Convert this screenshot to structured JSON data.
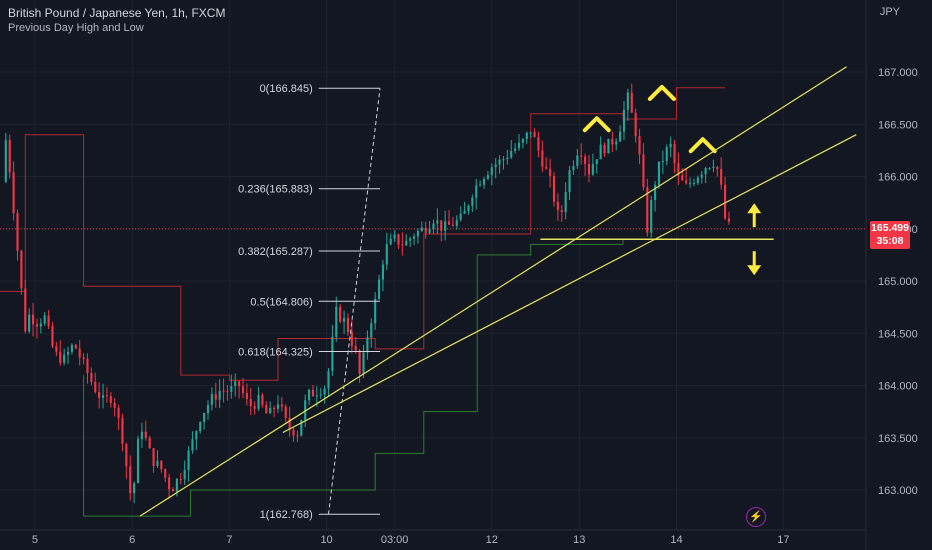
{
  "header": {
    "title": "British Pound / Japanese Yen, 1h, FXCM",
    "subtitle": "Previous Day High and Low",
    "currency": "JPY"
  },
  "price_badge": {
    "price": "165.499",
    "countdown": "35:08"
  },
  "lightning_icon": "lightning-icon",
  "colors": {
    "background": "#131722",
    "up": "#26a69a",
    "down": "#f23645",
    "pdh_line": "#b22833",
    "pdl_line": "#2e7d32",
    "trendline": "#e6e65a",
    "arrow": "#ffeb3b",
    "current_price": "#f23645"
  },
  "chart_data": {
    "type": "candlestick",
    "title": "British Pound / Japanese Yen, 1h, FXCM",
    "indicator": "Previous Day High and Low",
    "ylim": [
      162.6,
      167.4
    ],
    "y_ticks": [
      "167.000",
      "166.500",
      "166.000",
      "165.500",
      "165.000",
      "164.500",
      "164.000",
      "163.500",
      "163.000"
    ],
    "x_labels": [
      {
        "label": "5",
        "pos": 5.0
      },
      {
        "label": "6",
        "pos": 6.0
      },
      {
        "label": "7",
        "pos": 7.0
      },
      {
        "label": "10",
        "pos": 8.0
      },
      {
        "label": "03:00",
        "pos": 8.7
      },
      {
        "label": "12",
        "pos": 9.7
      },
      {
        "label": "13",
        "pos": 10.6
      },
      {
        "label": "14",
        "pos": 11.6
      },
      {
        "label": "17",
        "pos": 12.7
      }
    ],
    "xlim": [
      4.64,
      13.55
    ],
    "price_path": [
      [
        4.66,
        165.95
      ],
      [
        4.7,
        166.35
      ],
      [
        4.75,
        166.0
      ],
      [
        4.8,
        165.5
      ],
      [
        4.85,
        165.0
      ],
      [
        4.9,
        164.55
      ],
      [
        4.95,
        164.7
      ],
      [
        5.0,
        164.6
      ],
      [
        5.1,
        164.65
      ],
      [
        5.2,
        164.3
      ],
      [
        5.3,
        164.25
      ],
      [
        5.4,
        164.4
      ],
      [
        5.5,
        164.2
      ],
      [
        5.6,
        164.0
      ],
      [
        5.7,
        163.85
      ],
      [
        5.8,
        163.9
      ],
      [
        5.9,
        163.5
      ],
      [
        5.96,
        163.1
      ],
      [
        6.0,
        162.85
      ],
      [
        6.05,
        163.4
      ],
      [
        6.1,
        163.6
      ],
      [
        6.2,
        163.3
      ],
      [
        6.3,
        163.2
      ],
      [
        6.4,
        163.0
      ],
      [
        6.5,
        163.15
      ],
      [
        6.6,
        163.4
      ],
      [
        6.7,
        163.7
      ],
      [
        6.8,
        163.85
      ],
      [
        6.9,
        163.95
      ],
      [
        7.0,
        163.95
      ],
      [
        7.1,
        164.0
      ],
      [
        7.2,
        163.8
      ],
      [
        7.3,
        163.85
      ],
      [
        7.4,
        163.7
      ],
      [
        7.5,
        163.85
      ],
      [
        7.6,
        163.6
      ],
      [
        7.7,
        163.55
      ],
      [
        7.8,
        163.9
      ],
      [
        7.9,
        163.95
      ],
      [
        8.0,
        164.0
      ],
      [
        8.05,
        164.35
      ],
      [
        8.1,
        164.7
      ],
      [
        8.2,
        164.6
      ],
      [
        8.3,
        164.3
      ],
      [
        8.35,
        164.05
      ],
      [
        8.4,
        164.4
      ],
      [
        8.5,
        164.8
      ],
      [
        8.6,
        165.3
      ],
      [
        8.7,
        165.4
      ],
      [
        8.8,
        165.35
      ],
      [
        8.9,
        165.45
      ],
      [
        9.0,
        165.5
      ],
      [
        9.1,
        165.6
      ],
      [
        9.2,
        165.5
      ],
      [
        9.3,
        165.55
      ],
      [
        9.4,
        165.6
      ],
      [
        9.5,
        165.85
      ],
      [
        9.6,
        166.0
      ],
      [
        9.7,
        166.1
      ],
      [
        9.8,
        166.15
      ],
      [
        9.9,
        166.25
      ],
      [
        10.0,
        166.3
      ],
      [
        10.1,
        166.45
      ],
      [
        10.2,
        166.2
      ],
      [
        10.3,
        165.95
      ],
      [
        10.4,
        165.55
      ],
      [
        10.45,
        165.85
      ],
      [
        10.5,
        166.05
      ],
      [
        10.6,
        166.3
      ],
      [
        10.7,
        166.05
      ],
      [
        10.8,
        166.25
      ],
      [
        10.9,
        166.3
      ],
      [
        11.0,
        166.4
      ],
      [
        11.05,
        166.6
      ],
      [
        11.1,
        166.75
      ],
      [
        11.2,
        166.35
      ],
      [
        11.3,
        165.5
      ],
      [
        11.35,
        165.8
      ],
      [
        11.4,
        166.05
      ],
      [
        11.5,
        166.25
      ],
      [
        11.55,
        166.3
      ],
      [
        11.6,
        166.0
      ],
      [
        11.7,
        165.9
      ],
      [
        11.8,
        166.0
      ],
      [
        11.9,
        166.1
      ],
      [
        12.0,
        166.15
      ],
      [
        12.05,
        165.95
      ],
      [
        12.1,
        165.6
      ],
      [
        12.15,
        165.499
      ]
    ],
    "prev_day_high": [
      [
        4.64,
        164.9
      ],
      [
        4.9,
        164.9
      ],
      [
        4.9,
        166.4
      ],
      [
        5.5,
        166.4
      ],
      [
        5.5,
        164.95
      ],
      [
        6.5,
        164.95
      ],
      [
        6.5,
        164.1
      ],
      [
        7.0,
        164.1
      ],
      [
        7.0,
        164.05
      ],
      [
        7.5,
        164.05
      ],
      [
        7.5,
        164.45
      ],
      [
        8.5,
        164.45
      ],
      [
        8.5,
        164.35
      ],
      [
        9.0,
        164.35
      ],
      [
        9.0,
        165.45
      ],
      [
        9.55,
        165.45
      ],
      [
        9.55,
        165.45
      ],
      [
        10.1,
        165.45
      ],
      [
        10.1,
        166.6
      ],
      [
        11.05,
        166.6
      ],
      [
        11.05,
        166.55
      ],
      [
        11.6,
        166.55
      ],
      [
        11.6,
        166.85
      ],
      [
        12.1,
        166.85
      ]
    ],
    "prev_day_low": [
      [
        5.5,
        164.1
      ],
      [
        5.5,
        162.75
      ],
      [
        6.6,
        162.75
      ],
      [
        6.6,
        163.0
      ],
      [
        8.5,
        163.0
      ],
      [
        8.5,
        163.35
      ],
      [
        9.0,
        163.35
      ],
      [
        9.0,
        163.75
      ],
      [
        9.55,
        163.75
      ],
      [
        9.55,
        165.25
      ],
      [
        10.1,
        165.25
      ],
      [
        10.1,
        165.35
      ],
      [
        11.05,
        165.35
      ],
      [
        11.05,
        165.4
      ],
      [
        11.6,
        165.4
      ]
    ],
    "fibonacci": {
      "levels": [
        {
          "ratio": "0",
          "label": "0(166.845)",
          "price": 166.845
        },
        {
          "ratio": "0.236",
          "label": "0.236(165.883)",
          "price": 165.883
        },
        {
          "ratio": "0.382",
          "label": "0.382(165.287)",
          "price": 165.287
        },
        {
          "ratio": "0.5",
          "label": "0.5(164.806)",
          "price": 164.806
        },
        {
          "ratio": "0.618",
          "label": "0.618(164.325)",
          "price": 164.325
        },
        {
          "ratio": "1",
          "label": "1(162.768)",
          "price": 162.768
        }
      ],
      "x_start": 7.92,
      "x_end": 8.55
    },
    "trendlines": [
      {
        "from": [
          6.08,
          162.75
        ],
        "to": [
          13.35,
          167.05
        ]
      },
      {
        "from": [
          7.55,
          163.55
        ],
        "to": [
          13.45,
          166.4
        ]
      }
    ],
    "support_line": {
      "price": 165.4,
      "from": 10.2,
      "to": 12.6
    },
    "current_price": 165.499,
    "current_price_line_from": 4.64,
    "annotations": [
      {
        "type": "peak-chevron",
        "x": 10.78,
        "y": 166.5
      },
      {
        "type": "peak-chevron",
        "x": 11.45,
        "y": 166.8
      },
      {
        "type": "peak-chevron",
        "x": 11.87,
        "y": 166.3
      },
      {
        "type": "double-arrow",
        "x": 12.4,
        "y": 165.4
      }
    ]
  }
}
